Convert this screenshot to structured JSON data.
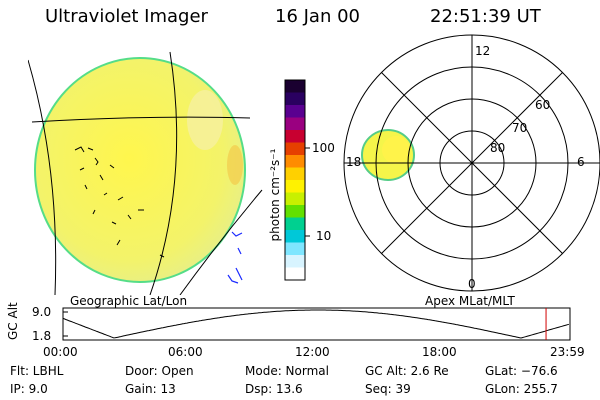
{
  "header": {
    "title": "Ultraviolet Imager",
    "date": "16 Jan 00",
    "time": "22:51:39 UT"
  },
  "colorbar": {
    "unit_label": "photon cm⁻²s⁻¹",
    "tick_100": "100",
    "tick_10": "10",
    "colors": [
      "#1a0030",
      "#2a0060",
      "#5a0090",
      "#9a0080",
      "#c80030",
      "#e64000",
      "#ff8c00",
      "#ffd000",
      "#fff200",
      "#c8f000",
      "#62e000",
      "#00d090",
      "#00c8d8",
      "#7fe6ff",
      "#d8f4ff",
      "#ffffff"
    ]
  },
  "left_panel": {
    "caption": "Geographic Lat/Lon"
  },
  "right_panel": {
    "caption": "Apex MLat/MLT",
    "mlt_labels": {
      "top": "12",
      "left": "18",
      "right": "6",
      "bottom": "0"
    },
    "lat_labels": [
      "60",
      "70",
      "80"
    ]
  },
  "timeline": {
    "axis_label": "GC Alt",
    "y_ticks": [
      "9.0",
      "1.8"
    ],
    "x_ticks": [
      "00:00",
      "06:00",
      "12:00",
      "18:00",
      "23:59"
    ],
    "current_marker_time": "22:51",
    "marker_color": "#d00000"
  },
  "footer": {
    "flt": "Flt:  LBHL",
    "ip": "IP:  9.0",
    "door": "Door:  Open",
    "gain": "Gain:  13",
    "mode": "Mode:  Normal",
    "dsp": "Dsp:    13.6",
    "gcalt": "GC Alt:  2.6 Re",
    "seq": "Seq:  39",
    "glat": "GLat:  −76.6",
    "glon": "GLon:  255.7"
  }
}
